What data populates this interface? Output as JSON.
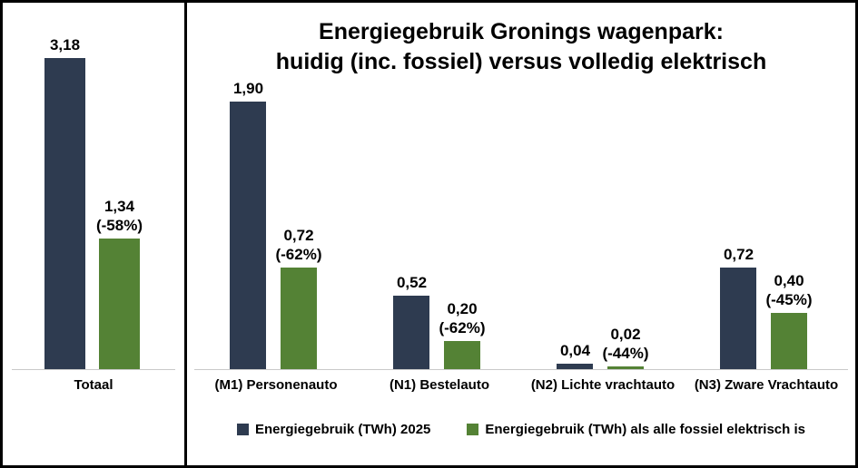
{
  "title": {
    "line1": "Energiegebruik Gronings wagenpark:",
    "line2": "huidig (inc. fossiel) versus volledig elektrisch"
  },
  "colors": {
    "current": "#2e3b50",
    "electric": "#548235",
    "baseline": "#c9c9c9",
    "border": "#000000"
  },
  "legend": [
    {
      "label": "Energiegebruik (TWh) 2025",
      "color": "#2e3b50"
    },
    {
      "label": "Energiegebruik (TWh) als alle fossiel elektrisch is",
      "color": "#548235"
    }
  ],
  "chart_data": [
    {
      "type": "bar",
      "panel": "totaal",
      "categories": [
        "Totaal"
      ],
      "ylim": [
        0,
        3.75
      ],
      "grid": false,
      "series": [
        {
          "name": "Energiegebruik (TWh) 2025",
          "color": "#2e3b50",
          "values": [
            3.18
          ],
          "labels": [
            "3,18"
          ],
          "pct_labels": [
            ""
          ]
        },
        {
          "name": "Energiegebruik (TWh) als alle fossiel elektrisch is",
          "color": "#548235",
          "values": [
            1.34
          ],
          "labels": [
            "1,34"
          ],
          "pct_labels": [
            "(-58%)"
          ]
        }
      ]
    },
    {
      "type": "bar",
      "panel": "voertuigcategorieen",
      "categories": [
        "(M1) Personenauto",
        "(N1) Bestelauto",
        "(N2) Lichte vrachtauto",
        "(N3) Zware Vrachtauto"
      ],
      "ylim": [
        0,
        2.6
      ],
      "grid": false,
      "legend_position": "bottom",
      "series": [
        {
          "name": "Energiegebruik (TWh) 2025",
          "color": "#2e3b50",
          "values": [
            1.9,
            0.52,
            0.04,
            0.72
          ],
          "labels": [
            "1,90",
            "0,52",
            "0,04",
            "0,72"
          ],
          "pct_labels": [
            "",
            "",
            "",
            ""
          ]
        },
        {
          "name": "Energiegebruik (TWh) als alle fossiel elektrisch is",
          "color": "#548235",
          "values": [
            0.72,
            0.2,
            0.02,
            0.4
          ],
          "labels": [
            "0,72",
            "0,20",
            "0,02",
            "0,40"
          ],
          "pct_labels": [
            "(-62%)",
            "(-62%)",
            "(-44%)",
            "(-45%)"
          ]
        }
      ]
    }
  ]
}
